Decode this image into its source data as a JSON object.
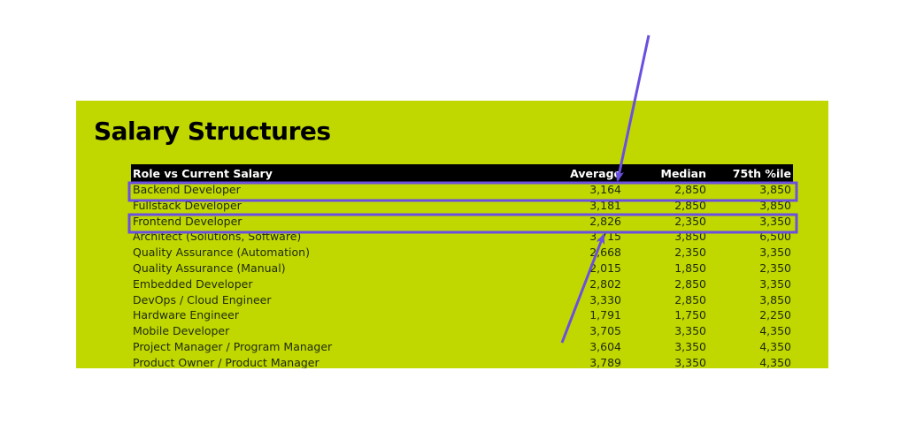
{
  "title": "Salary Structures",
  "table": {
    "headers": [
      "Role vs Current Salary",
      "Average",
      "Median",
      "75th %ile"
    ],
    "rows": [
      {
        "role": "Backend Developer",
        "average": "3,164",
        "median": "2,850",
        "p75": "3,850"
      },
      {
        "role": "Fullstack Developer",
        "average": "3,181",
        "median": "2,850",
        "p75": "3,850"
      },
      {
        "role": "Frontend Developer",
        "average": "2,826",
        "median": "2,350",
        "p75": "3,350"
      },
      {
        "role": "Architect (Solutions, Software)",
        "average": "3,715",
        "median": "3,850",
        "p75": "6,500"
      },
      {
        "role": "Quality Assurance (Automation)",
        "average": "2,668",
        "median": "2,350",
        "p75": "3,350"
      },
      {
        "role": "Quality Assurance (Manual)",
        "average": "2,015",
        "median": "1,850",
        "p75": "2,350"
      },
      {
        "role": "Embedded Developer",
        "average": "2,802",
        "median": "2,850",
        "p75": "3,350"
      },
      {
        "role": "DevOps / Cloud Engineer",
        "average": "3,330",
        "median": "2,850",
        "p75": "3,850"
      },
      {
        "role": "Hardware Engineer",
        "average": "1,791",
        "median": "1,750",
        "p75": "2,250"
      },
      {
        "role": "Mobile Developer",
        "average": "3,705",
        "median": "3,350",
        "p75": "4,350"
      },
      {
        "role": "Project Manager / Program Manager",
        "average": "3,604",
        "median": "3,350",
        "p75": "4,350"
      },
      {
        "role": "Product Owner / Product Manager",
        "average": "3,789",
        "median": "3,350",
        "p75": "4,350"
      }
    ]
  },
  "annotations": {
    "highlighted_rows": [
      "Backend Developer",
      "Frontend Developer"
    ],
    "color": "#6a4fe0"
  },
  "colors": {
    "panel_background": "#c0d800",
    "header_background": "#000000",
    "header_text": "#ffffff",
    "body_text": "#1f2a05"
  }
}
